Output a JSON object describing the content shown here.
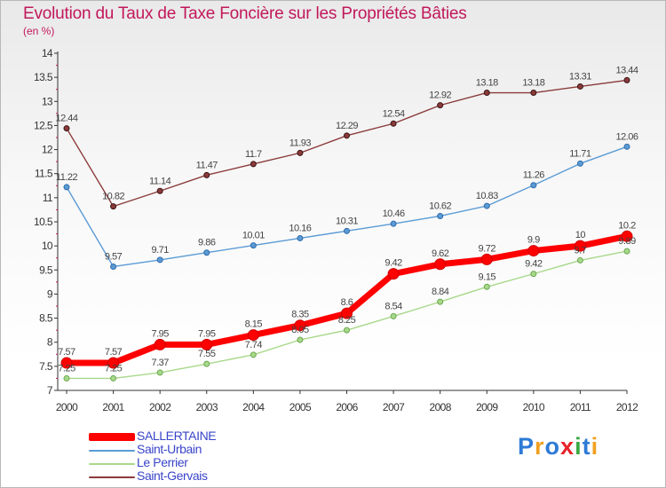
{
  "chart_data": {
    "type": "line",
    "title": "Evolution du Taux de Taxe Foncière sur les Propriétés Bâties",
    "subtitle": "(en %)",
    "x": [
      "2000",
      "2001",
      "2002",
      "2003",
      "2004",
      "2005",
      "2006",
      "2007",
      "2008",
      "2009",
      "2010",
      "2011",
      "2012"
    ],
    "ylim": [
      7,
      14
    ],
    "yticks": [
      "7",
      "7.5",
      "8",
      "8.5",
      "9",
      "9.5",
      "10",
      "10.5",
      "11",
      "11.5",
      "12",
      "12.5",
      "13",
      "13.5",
      "14"
    ],
    "grid": false,
    "legend_position": "bottom-left",
    "series": [
      {
        "name": "SALLERTAINE",
        "color": "#ff0000",
        "values": [
          7.57,
          7.57,
          7.95,
          7.95,
          8.15,
          8.35,
          8.6,
          9.42,
          9.62,
          9.72,
          9.9,
          10,
          10.2
        ],
        "labels": [
          "7.57",
          "7.57",
          "7.95",
          "7.95",
          "8.15",
          "8.35",
          "8.6",
          "9.42",
          "9.62",
          "9.72",
          "9.9",
          "10",
          "10.2"
        ]
      },
      {
        "name": "Saint-Urbain",
        "color": "#5b9bd5",
        "values": [
          11.22,
          9.57,
          9.71,
          9.86,
          10.01,
          10.16,
          10.31,
          10.46,
          10.62,
          10.83,
          11.26,
          11.71,
          12.06
        ],
        "labels": [
          "11.22",
          "9.57",
          "9.71",
          "9.86",
          "10.01",
          "10.16",
          "10.31",
          "10.46",
          "10.62",
          "10.83",
          "11.26",
          "11.71",
          "12.06"
        ]
      },
      {
        "name": "Le Perrier",
        "color": "#a8d88a",
        "values": [
          7.25,
          7.25,
          7.37,
          7.55,
          7.74,
          8.05,
          8.25,
          8.54,
          8.84,
          9.15,
          9.42,
          9.7,
          9.89
        ],
        "labels": [
          "7.25",
          "7.25",
          "7.37",
          "7.55",
          "7.74",
          "8.05",
          "8.25",
          "8.54",
          "8.84",
          "9.15",
          "9.42",
          "9.7",
          "9.89"
        ]
      },
      {
        "name": "Saint-Gervais",
        "color": "#8b3a3a",
        "values": [
          12.44,
          10.82,
          11.14,
          11.47,
          11.7,
          11.93,
          12.29,
          12.54,
          12.92,
          13.18,
          13.18,
          13.31,
          13.44
        ],
        "labels": [
          "12.44",
          "10.82",
          "11.14",
          "11.47",
          "11.7",
          "11.93",
          "12.29",
          "12.54",
          "12.92",
          "13.18",
          "13.18",
          "13.31",
          "13.44"
        ]
      }
    ]
  },
  "logo": {
    "letters": [
      "P",
      "r",
      "o",
      "x",
      "i",
      "t",
      "i"
    ],
    "colors": [
      "#2e7bd6",
      "#f0a020",
      "#2e7bd6",
      "#e8222c",
      "#3aa844",
      "#2e7bd6",
      "#f0a020"
    ]
  }
}
